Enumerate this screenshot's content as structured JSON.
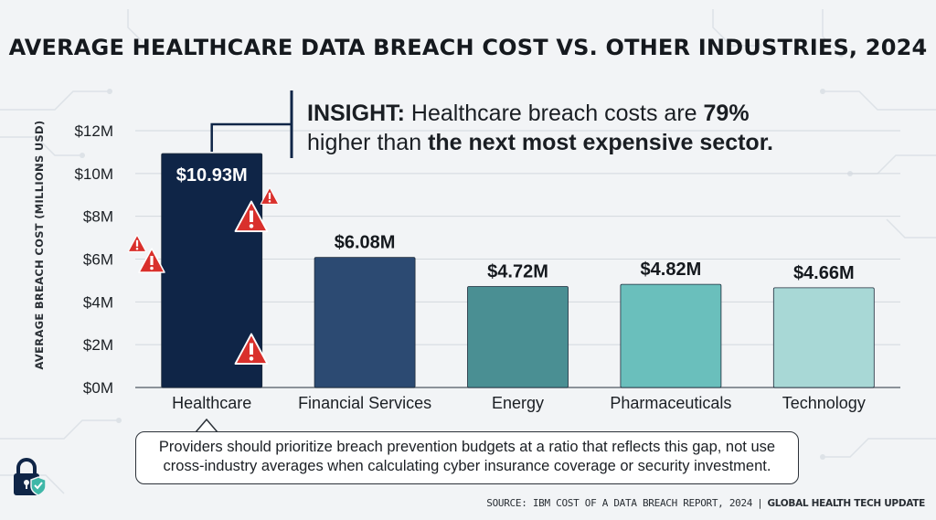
{
  "title": "AVERAGE HEALTHCARE DATA BREACH COST VS. OTHER INDUSTRIES, 2024",
  "insight": {
    "lead": "INSIGHT:",
    "text_1": "Healthcare breach costs are",
    "pct": "79%",
    "text_2": "higher than",
    "emphasis": "the next most expensive sector."
  },
  "callout": "Providers should prioritize breach prevention budgets at a ratio that reflects this gap, not use cross-industry averages when calculating cyber insurance coverage or security investment.",
  "source": {
    "text": "SOURCE: IBM COST OF A DATA BREACH REPORT, 2024",
    "separator": "|",
    "publisher": "GLOBAL HEALTH TECH UPDATE"
  },
  "icons": [
    "warning-icon",
    "lock-shield-icon"
  ],
  "colors": {
    "healthcare": "#0f2547",
    "financial_services": "#2c4a72",
    "energy": "#4a8f93",
    "pharmaceuticals": "#6abfbc",
    "technology": "#a8d8d6"
  },
  "chart_data": {
    "type": "bar",
    "categories": [
      "Healthcare",
      "Financial Services",
      "Energy",
      "Pharmaceuticals",
      "Technology"
    ],
    "values": [
      10.93,
      6.08,
      4.72,
      4.82,
      4.66
    ],
    "value_labels": [
      "$10.93M",
      "$6.08M",
      "$4.72M",
      "$4.82M",
      "$4.66M"
    ],
    "ylabel": "AVERAGE BREACH COST (MILLIONS USD)",
    "xlabel": "",
    "ylim": [
      0,
      12
    ],
    "yticks": [
      0,
      2,
      4,
      6,
      8,
      10,
      12
    ],
    "ytick_labels": [
      "$0M",
      "$2M",
      "$4M",
      "$6M",
      "$8M",
      "$10M",
      "$12M"
    ],
    "grid": true
  }
}
